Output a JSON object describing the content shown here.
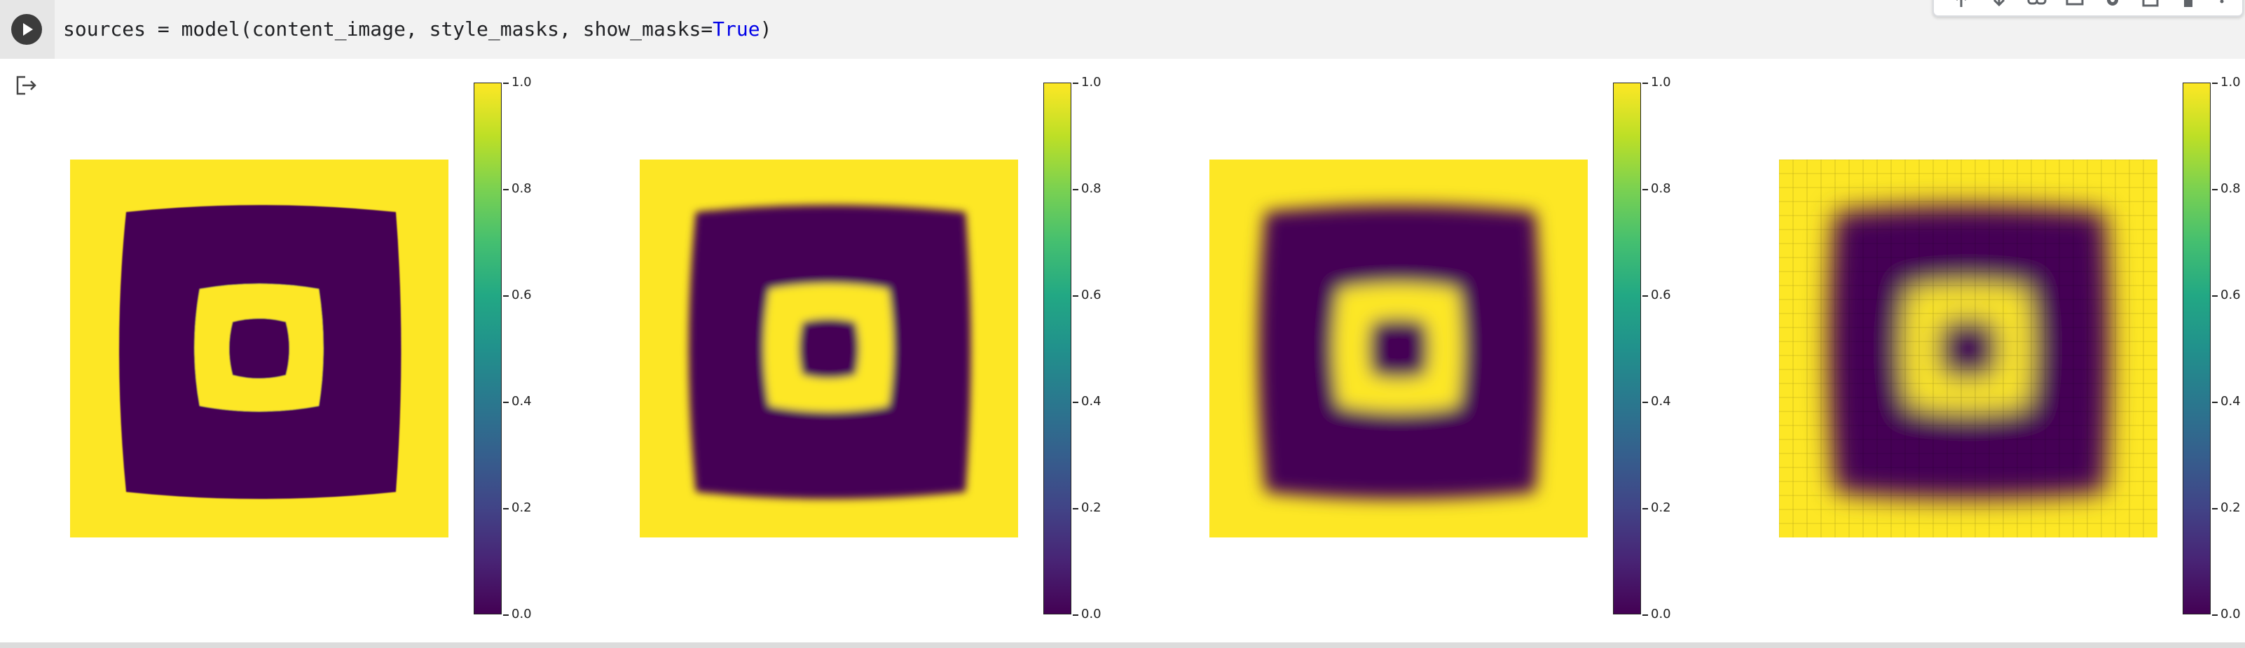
{
  "cell": {
    "code_prefix": "sources = model(content_image, style_masks, show_masks=",
    "code_keyword": "True",
    "code_suffix": ")"
  },
  "toolbar": {
    "icons": [
      "arrow-up-icon",
      "arrow-down-icon",
      "link-icon",
      "comment-icon",
      "gear-icon",
      "mirror-cell-icon",
      "delete-icon",
      "more-vert-icon"
    ]
  },
  "output": {
    "icon": "output-exit-icon",
    "colormap": "viridis",
    "colorbar_ticks": [
      "0.0",
      "0.2",
      "0.4",
      "0.6",
      "0.8",
      "1.0"
    ],
    "panels": [
      {
        "blur": 0.2,
        "pixel": 0
      },
      {
        "blur": 1.4,
        "pixel": 0
      },
      {
        "blur": 3.0,
        "pixel": 0
      },
      {
        "blur": 4.5,
        "pixel": 20
      }
    ]
  },
  "chart_data": {
    "type": "heatmap",
    "count": 4,
    "colorbar_range": [
      0.0,
      1.0
    ],
    "colorbar_ticks": [
      0.0,
      0.2,
      0.4,
      0.6,
      0.8,
      1.0
    ],
    "description_values": {
      "outer_border": 1.0,
      "inner_field": 0.0,
      "ring": 1.0,
      "center": 0.0
    }
  }
}
